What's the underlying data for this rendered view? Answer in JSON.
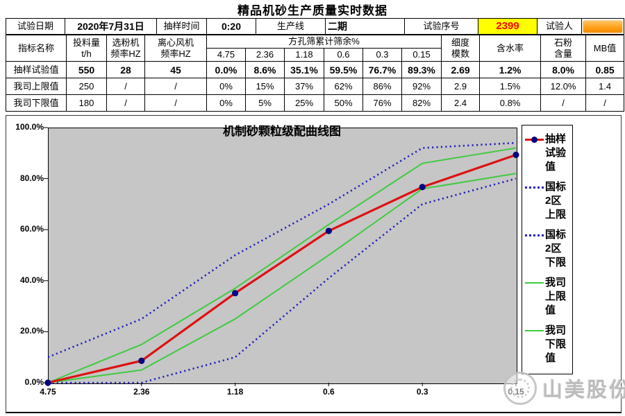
{
  "title": "精品机砂生产质量实时数据",
  "info_bar": {
    "date_label": "试验日期",
    "date_value": "2020年7月31日",
    "time_label": "抽样时间",
    "time_value": "0:20",
    "line_label": "生产线",
    "line_value": "二期",
    "serial_label": "试验序号",
    "serial_value": "2399",
    "tester_label": "试验人"
  },
  "table": {
    "header": {
      "name": "指标名称",
      "feed": "投料量\nt/h",
      "classifier": "选粉机\n频率HZ",
      "fan": "离心风机\n频率HZ",
      "sieve_group": "方孔筛累计筛余%",
      "sieves": [
        "4.75",
        "2.36",
        "1.18",
        "0.6",
        "0.3",
        "0.15"
      ],
      "fineness": "细度\n模数",
      "moisture": "含水率",
      "stone_powder": "石粉\n含量",
      "mb": "MB值"
    },
    "rows": [
      {
        "label": "抽样试验值",
        "cells": [
          "550",
          "28",
          "45",
          "0.0%",
          "8.6%",
          "35.1%",
          "59.5%",
          "76.7%",
          "89.3%",
          "2.69",
          "1.2%",
          "8.0%",
          "0.85"
        ]
      },
      {
        "label": "我司上限值",
        "cells": [
          "250",
          "/",
          "/",
          "0%",
          "15%",
          "37%",
          "62%",
          "86%",
          "92%",
          "2.9",
          "1.5%",
          "12.0%",
          "1.4"
        ]
      },
      {
        "label": "我司下限值",
        "cells": [
          "180",
          "/",
          "/",
          "0%",
          "5%",
          "25%",
          "50%",
          "76%",
          "82%",
          "2.4",
          "0.8%",
          "/",
          "/"
        ]
      }
    ]
  },
  "chart_data": {
    "type": "line",
    "title": "机制砂颗粒级配曲线图",
    "categories": [
      "4.75",
      "2.36",
      "1.18",
      "0.6",
      "0.3",
      "0.15"
    ],
    "y_ticks": [
      "100.0%",
      "80.0%",
      "60.0%",
      "40.0%",
      "20.0%",
      "0.0%"
    ],
    "ylim": [
      0,
      100
    ],
    "grid": false,
    "legend_position": "right",
    "series": [
      {
        "name": "抽样试验值",
        "style": "red-marker",
        "values": [
          0.0,
          8.6,
          35.1,
          59.5,
          76.7,
          89.3
        ]
      },
      {
        "name": "国标2区上限",
        "style": "blue-dotted",
        "values": [
          10,
          25,
          50,
          70,
          92,
          94
        ]
      },
      {
        "name": "国标2区下限",
        "style": "blue-dotted",
        "values": [
          0,
          0,
          10,
          41,
          70,
          80
        ]
      },
      {
        "name": "我司上限值",
        "style": "green",
        "values": [
          0,
          15,
          37,
          62,
          86,
          92
        ]
      },
      {
        "name": "我司下限值",
        "style": "green",
        "values": [
          0,
          5,
          25,
          50,
          76,
          82
        ]
      }
    ],
    "legend_labels": [
      "抽样\n试验\n值",
      "国标\n2区\n上限",
      "国标\n2区\n下限",
      "我司\n上限\n值",
      "我司\n下限\n值"
    ]
  },
  "watermark": {
    "text": "山美股份"
  },
  "colors": {
    "highlight_bg": "#ffff00",
    "highlight_text": "#ff0000",
    "redacted_orange": "#ff9d14",
    "plot_bg": "#c6c6c6",
    "sample_line": "#dd1111",
    "marker": "#000080",
    "national_limit": "#2222bb",
    "company_limit": "#3ecb3e"
  }
}
